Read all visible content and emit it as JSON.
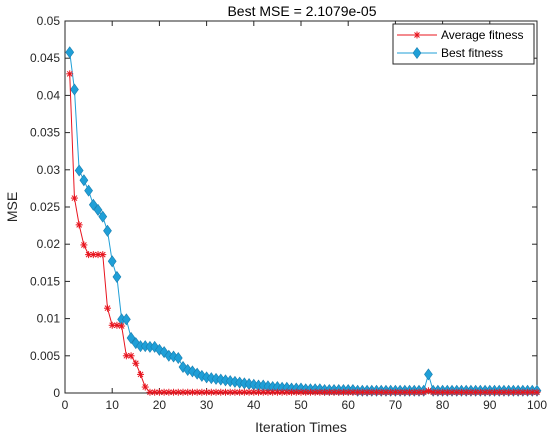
{
  "chart_data": {
    "type": "line",
    "title": "Best MSE = 2.1079e-05",
    "xlabel": "Iteration Times",
    "ylabel": "MSE",
    "xlim": [
      0,
      100
    ],
    "ylim": [
      0,
      0.05
    ],
    "xticks": [
      0,
      10,
      20,
      30,
      40,
      50,
      60,
      70,
      80,
      90,
      100
    ],
    "xtick_labels": [
      "0",
      "10",
      "20",
      "30",
      "40",
      "50",
      "60",
      "70",
      "80",
      "90",
      "100"
    ],
    "yticks": [
      0,
      0.005,
      0.01,
      0.015,
      0.02,
      0.025,
      0.03,
      0.035,
      0.04,
      0.045,
      0.05
    ],
    "ytick_labels": [
      "0",
      "0.005",
      "0.01",
      "0.015",
      "0.02",
      "0.025",
      "0.03",
      "0.035",
      "0.04",
      "0.045",
      "0.05"
    ],
    "grid": false,
    "legend_position": "top-right",
    "x": [
      1,
      2,
      3,
      4,
      5,
      6,
      7,
      8,
      9,
      10,
      11,
      12,
      13,
      14,
      15,
      16,
      17,
      18,
      19,
      20,
      21,
      22,
      23,
      24,
      25,
      26,
      27,
      28,
      29,
      30,
      31,
      32,
      33,
      34,
      35,
      36,
      37,
      38,
      39,
      40,
      41,
      42,
      43,
      44,
      45,
      46,
      47,
      48,
      49,
      50,
      51,
      52,
      53,
      54,
      55,
      56,
      57,
      58,
      59,
      60,
      61,
      62,
      63,
      64,
      65,
      66,
      67,
      68,
      69,
      70,
      71,
      72,
      73,
      74,
      75,
      76,
      77,
      78,
      79,
      80,
      81,
      82,
      83,
      84,
      85,
      86,
      87,
      88,
      89,
      90,
      91,
      92,
      93,
      94,
      95,
      96,
      97,
      98,
      99,
      100
    ],
    "series": [
      {
        "name": "Average fitness",
        "color": "#e8141e",
        "marker": "asterisk",
        "values": [
          0.0429,
          0.0262,
          0.0226,
          0.0199,
          0.0186,
          0.0186,
          0.0186,
          0.0186,
          0.0114,
          0.0091,
          0.0091,
          0.009,
          0.005,
          0.005,
          0.004,
          0.0025,
          0.0008,
          0.0001,
          0.0001,
          0.0001,
          0.0001,
          0.0001,
          0.0001,
          0.0001,
          0.0001,
          0.0001,
          0.0001,
          0.0001,
          0.0001,
          0.0001,
          0.0001,
          0.0001,
          0.0001,
          0.0001,
          0.0001,
          0.0001,
          0.0001,
          0.0001,
          0.0001,
          0.0001,
          0.0001,
          0.0001,
          0.0001,
          0.0001,
          0.0001,
          0.0001,
          0.0001,
          0.0001,
          0.0001,
          0.0001,
          0.0001,
          0.0001,
          0.0001,
          0.0001,
          0.0001,
          0.0001,
          0.0001,
          0.0001,
          0.0001,
          0.0001,
          0.0001,
          0.0001,
          0.0001,
          0.0001,
          0.0001,
          0.0001,
          0.0001,
          0.0001,
          0.0001,
          0.0001,
          0.0001,
          0.0001,
          0.0001,
          0.0001,
          0.0001,
          0.0001,
          0.0003,
          0.0001,
          0.0001,
          0.0001,
          0.0001,
          0.0001,
          0.0001,
          0.0001,
          0.0001,
          0.0001,
          0.0001,
          0.0001,
          0.0001,
          0.0001,
          0.0001,
          0.0001,
          0.0001,
          0.0001,
          0.0001,
          0.0001,
          0.0001,
          0.0001,
          0.0001,
          0.0001
        ]
      },
      {
        "name": "Best fitness",
        "color": "#1f9fd7",
        "marker": "diamond",
        "values": [
          0.0458,
          0.0408,
          0.0299,
          0.0286,
          0.0272,
          0.0253,
          0.0246,
          0.0237,
          0.0218,
          0.0177,
          0.0156,
          0.0099,
          0.0099,
          0.0074,
          0.0067,
          0.0063,
          0.0063,
          0.0062,
          0.0062,
          0.0058,
          0.0055,
          0.005,
          0.0049,
          0.0047,
          0.0035,
          0.0031,
          0.0029,
          0.0026,
          0.0023,
          0.0021,
          0.002,
          0.0019,
          0.0018,
          0.0017,
          0.0016,
          0.0015,
          0.0014,
          0.0013,
          0.0012,
          0.0011,
          0.001,
          0.001,
          0.0009,
          0.0008,
          0.0008,
          0.0007,
          0.0007,
          0.0006,
          0.0006,
          0.0006,
          0.0005,
          0.0005,
          0.0005,
          0.0005,
          0.0004,
          0.0004,
          0.0004,
          0.0004,
          0.0004,
          0.0004,
          0.0004,
          0.0003,
          0.0003,
          0.0003,
          0.0003,
          0.0003,
          0.0003,
          0.0003,
          0.0003,
          0.0003,
          0.0003,
          0.0003,
          0.0003,
          0.0003,
          0.0003,
          0.0003,
          0.0025,
          0.0003,
          0.0003,
          0.0003,
          0.0003,
          0.0003,
          0.0003,
          0.0003,
          0.0003,
          0.0003,
          0.0003,
          0.0003,
          0.0003,
          0.0003,
          0.0003,
          0.0003,
          0.0003,
          0.0003,
          0.0003,
          0.0003,
          0.0003,
          0.0003,
          0.0003,
          0.0003
        ]
      }
    ]
  }
}
